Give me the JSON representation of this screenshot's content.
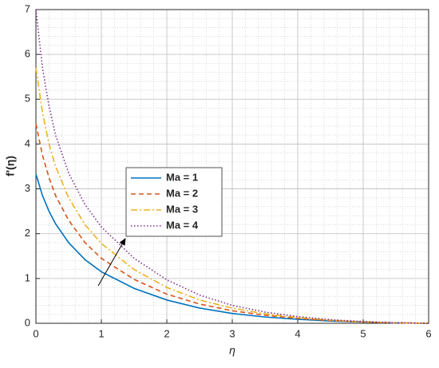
{
  "chart_data": {
    "type": "line",
    "x_label": "η",
    "y_label": "f'(η)",
    "x": [
      0,
      0.1,
      0.2,
      0.3,
      0.5,
      0.75,
      1,
      1.5,
      2,
      2.5,
      3,
      3.5,
      4,
      4.5,
      5,
      5.5,
      6
    ],
    "series": [
      {
        "name": "Ma = 1",
        "color": "#0072bd",
        "dash": "solid",
        "values": [
          3.33,
          2.85,
          2.5,
          2.22,
          1.8,
          1.42,
          1.15,
          0.78,
          0.52,
          0.34,
          0.22,
          0.14,
          0.09,
          0.05,
          0.03,
          0.01,
          0
        ]
      },
      {
        "name": "Ma = 2",
        "color": "#d95319",
        "dash": "dashed",
        "values": [
          4.45,
          3.75,
          3.25,
          2.85,
          2.3,
          1.8,
          1.45,
          0.98,
          0.65,
          0.43,
          0.28,
          0.18,
          0.11,
          0.06,
          0.03,
          0.01,
          0
        ]
      },
      {
        "name": "Ma = 3",
        "color": "#edb120",
        "dash": "dashdot",
        "values": [
          5.7,
          4.7,
          4.0,
          3.5,
          2.8,
          2.2,
          1.78,
          1.2,
          0.8,
          0.52,
          0.34,
          0.21,
          0.13,
          0.07,
          0.03,
          0.01,
          0
        ]
      },
      {
        "name": "Ma = 4",
        "color": "#7e2f8e",
        "dash": "dotted",
        "values": [
          7.0,
          5.7,
          4.85,
          4.2,
          3.35,
          2.65,
          2.15,
          1.45,
          0.97,
          0.63,
          0.4,
          0.25,
          0.15,
          0.08,
          0.04,
          0.01,
          0
        ]
      }
    ],
    "xlim": [
      0,
      6
    ],
    "ylim": [
      0,
      7
    ],
    "xticks": [
      0,
      1,
      2,
      3,
      4,
      5,
      6
    ],
    "yticks": [
      0,
      1,
      2,
      3,
      4,
      5,
      6,
      7
    ],
    "grid": true,
    "minor_grid": true
  }
}
